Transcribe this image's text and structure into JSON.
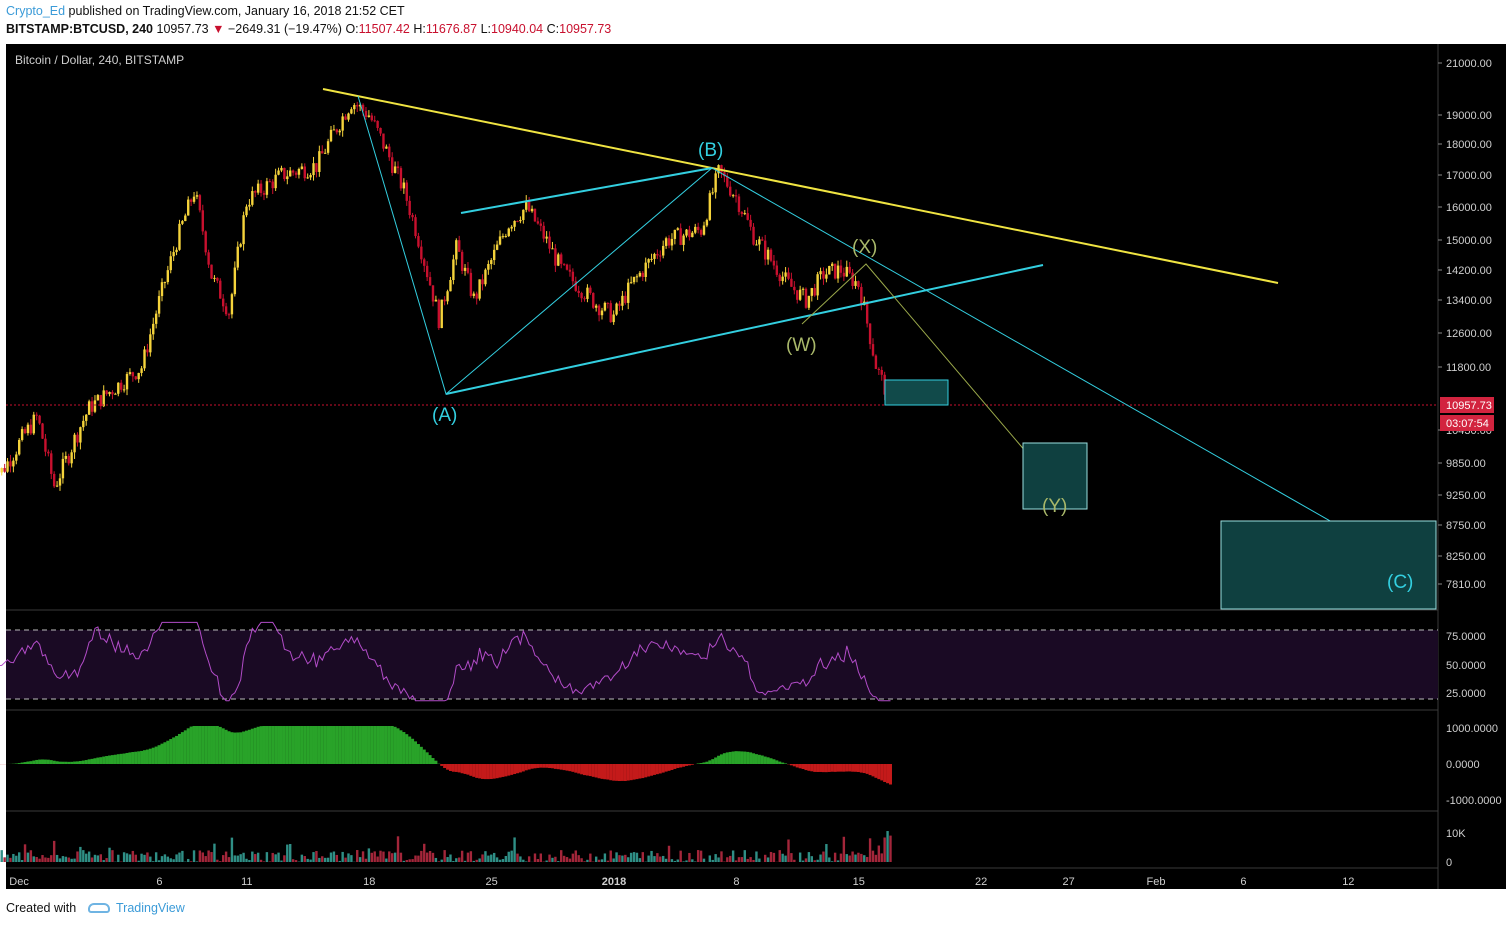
{
  "header": {
    "author": "Crypto_Ed",
    "published": " published on TradingView.com, January 16, 2018 21:52 CET",
    "symbol": "BITSTAMP:BTCUSD, 240",
    "last": "10957.73",
    "change": "−2649.31 (−19.47%)",
    "o_label": "O:",
    "o_value": "11507.42",
    "h_label": "H:",
    "h_value": "11676.87",
    "l_label": "L:",
    "l_value": "10940.04",
    "c_label": "C:",
    "c_value": "10957.73"
  },
  "chart_title": "Bitcoin / Dollar, 240, BITSTAMP",
  "price_badge": "10957.73",
  "time_badge": "03:07:54",
  "footer": {
    "created": "Created with",
    "brand": "TradingView"
  },
  "colors": {
    "background": "#000000",
    "up": "#f5d33b",
    "down": "#c8102e",
    "trend_yellow": "#f0e442",
    "trend_cyan": "#33cfe0",
    "rsi": "#b24cc8",
    "macd_up": "#29a329",
    "macd_down": "#c41a1a"
  },
  "chart_data": {
    "type": "candlestick",
    "y_ticks": [
      "21000.00",
      "19000.00",
      "18000.00",
      "17000.00",
      "16000.00",
      "15000.00",
      "14200.00",
      "13400.00",
      "12600.00",
      "11800.00",
      "10430.00",
      "9850.00",
      "9250.00",
      "8750.00",
      "8250.00",
      "7810.00"
    ],
    "x_ticks": [
      "Dec",
      "6",
      "11",
      "18",
      "25",
      "2018",
      "8",
      "15",
      "22",
      "27",
      "Feb",
      "6",
      "12"
    ],
    "price_path": [
      [
        "2017-11-27",
        9700
      ],
      [
        "2017-11-29",
        10700
      ],
      [
        "2017-11-30",
        9400
      ],
      [
        "2017-12-02",
        10900
      ],
      [
        "2017-12-05",
        11800
      ],
      [
        "2017-12-07",
        15000
      ],
      [
        "2017-12-08",
        16500
      ],
      [
        "2017-12-09",
        14000
      ],
      [
        "2017-12-10",
        13100
      ],
      [
        "2017-12-11",
        16200
      ],
      [
        "2017-12-13",
        17000
      ],
      [
        "2017-12-15",
        17300
      ],
      [
        "2017-12-17",
        19500
      ],
      [
        "2017-12-18",
        19000
      ],
      [
        "2017-12-20",
        16500
      ],
      [
        "2017-12-22",
        12900
      ],
      [
        "2017-12-23",
        14800
      ],
      [
        "2017-12-24",
        13400
      ],
      [
        "2017-12-26",
        15500
      ],
      [
        "2017-12-27",
        16000
      ],
      [
        "2017-12-29",
        14200
      ],
      [
        "2017-12-31",
        13300
      ],
      [
        "2018-01-01",
        13000
      ],
      [
        "2018-01-02",
        13800
      ],
      [
        "2018-01-04",
        15000
      ],
      [
        "2018-01-06",
        15300
      ],
      [
        "2018-01-07",
        17100
      ],
      [
        "2018-01-08",
        16300
      ],
      [
        "2018-01-09",
        15100
      ],
      [
        "2018-01-11",
        13800
      ],
      [
        "2018-01-12",
        13400
      ],
      [
        "2018-01-13",
        14100
      ],
      [
        "2018-01-14",
        14200
      ],
      [
        "2018-01-15",
        13800
      ],
      [
        "2018-01-16",
        11800
      ],
      [
        "2018-01-16T21",
        10957
      ]
    ],
    "rsi_levels": [
      "75.0000",
      "50.0000",
      "25.0000"
    ],
    "macd_levels": [
      "1000.0000",
      "0.0000",
      "-1000.0000"
    ],
    "volume_levels": [
      "10K",
      "0"
    ],
    "annotations": [
      "(A)",
      "(B)",
      "(C)",
      "(W)",
      "(X)",
      "(Y)"
    ]
  }
}
